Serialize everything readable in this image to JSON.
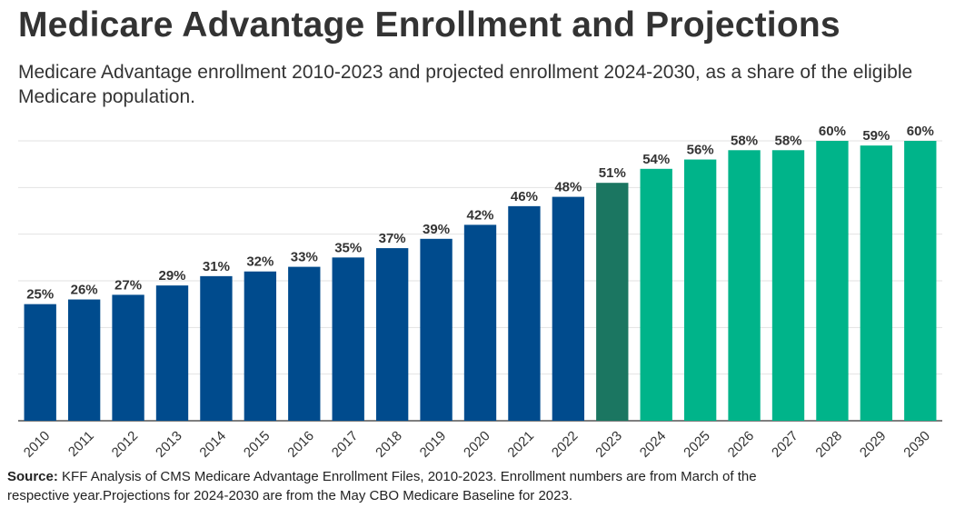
{
  "title": "Medicare Advantage Enrollment and Projections",
  "subtitle": "Medicare Advantage enrollment 2010-2023 and projected enrollment 2024-2030, as a share of the eligible Medicare population.",
  "source": {
    "label": "Source:",
    "text": "KFF Analysis of CMS Medicare Advantage Enrollment Files, 2010-2023. Enrollment numbers are from March of the respective year.Projections for 2024-2030 are from the May CBO Medicare Baseline for 2023."
  },
  "colors": {
    "historical": "#004b8d",
    "current": "#1b7661",
    "projected": "#00b48a",
    "grid": "#e2e2e2",
    "axis": "#555555"
  },
  "chart_data": {
    "type": "bar",
    "categories": [
      "2010",
      "2011",
      "2012",
      "2013",
      "2014",
      "2015",
      "2016",
      "2017",
      "2018",
      "2019",
      "2020",
      "2021",
      "2022",
      "2023",
      "2024",
      "2025",
      "2026",
      "2027",
      "2028",
      "2029",
      "2030"
    ],
    "values": [
      25,
      26,
      27,
      29,
      31,
      32,
      33,
      35,
      37,
      39,
      42,
      46,
      48,
      51,
      54,
      56,
      58,
      58,
      60,
      59,
      60
    ],
    "labels": [
      "25%",
      "26%",
      "27%",
      "29%",
      "31%",
      "32%",
      "33%",
      "35%",
      "37%",
      "39%",
      "42%",
      "46%",
      "48%",
      "51%",
      "54%",
      "56%",
      "58%",
      "58%",
      "60%",
      "59%",
      "60%"
    ],
    "groups": [
      "historical",
      "historical",
      "historical",
      "historical",
      "historical",
      "historical",
      "historical",
      "historical",
      "historical",
      "historical",
      "historical",
      "historical",
      "historical",
      "current",
      "projected",
      "projected",
      "projected",
      "projected",
      "projected",
      "projected",
      "projected"
    ],
    "ylim": [
      0,
      60
    ],
    "gridlines": [
      0,
      10,
      20,
      30,
      40,
      50,
      60
    ],
    "grid": true,
    "legend": "none",
    "xlabel": "",
    "ylabel": ""
  }
}
